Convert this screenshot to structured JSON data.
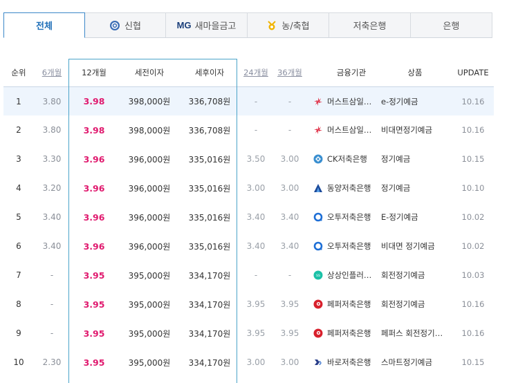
{
  "tabs": [
    {
      "label": "전체",
      "active": true,
      "icon": ""
    },
    {
      "label": "신협",
      "active": false,
      "icon": "shinhyup-logo-icon"
    },
    {
      "label": "새마을금고",
      "active": false,
      "icon": "mg-logo-icon",
      "prefix": "MG"
    },
    {
      "label": "농/축협",
      "active": false,
      "icon": "nonghyup-logo-icon"
    },
    {
      "label": "저축은행",
      "active": false,
      "icon": ""
    },
    {
      "label": "은행",
      "active": false,
      "icon": ""
    }
  ],
  "table": {
    "headers": {
      "rank": "순위",
      "m6": "6개월",
      "m12": "12개월",
      "pre_tax": "세전이자",
      "post_tax": "세후이자",
      "m24": "24개월",
      "m36": "36개월",
      "bank": "금융기관",
      "product": "상품",
      "update": "UPDATE"
    },
    "rows": [
      {
        "rank": "1",
        "m6": "3.80",
        "m12": "3.98",
        "pre": "398,000원",
        "post": "336,708원",
        "m24": "-",
        "m36": "-",
        "bank": "머스트삼일…",
        "product": "e-정기예금",
        "update": "10.16",
        "logo": "must-samil-logo-icon",
        "logo_color": "#e0344a"
      },
      {
        "rank": "2",
        "m6": "3.80",
        "m12": "3.98",
        "pre": "398,000원",
        "post": "336,708원",
        "m24": "-",
        "m36": "-",
        "bank": "머스트삼일…",
        "product": "비대면정기예금",
        "update": "10.16",
        "logo": "must-samil-logo-icon",
        "logo_color": "#e0344a"
      },
      {
        "rank": "3",
        "m6": "3.30",
        "m12": "3.96",
        "pre": "396,000원",
        "post": "335,016원",
        "m24": "3.50",
        "m36": "3.00",
        "bank": "CK저축은행",
        "product": "정기예금",
        "update": "10.15",
        "logo": "ck-logo-icon",
        "logo_color": "#3a8fd0"
      },
      {
        "rank": "4",
        "m6": "3.20",
        "m12": "3.96",
        "pre": "396,000원",
        "post": "335,016원",
        "m24": "3.00",
        "m36": "3.00",
        "bank": "동양저축은행",
        "product": "정기예금",
        "update": "10.10",
        "logo": "dongyang-logo-icon",
        "logo_color": "#1b4a9a"
      },
      {
        "rank": "5",
        "m6": "3.40",
        "m12": "3.96",
        "pre": "396,000원",
        "post": "335,016원",
        "m24": "3.40",
        "m36": "3.40",
        "bank": "오투저축은행",
        "product": "E-정기예금",
        "update": "10.02",
        "logo": "o2-logo-icon",
        "logo_color": "#1e6fd6"
      },
      {
        "rank": "6",
        "m6": "3.40",
        "m12": "3.96",
        "pre": "396,000원",
        "post": "335,016원",
        "m24": "3.40",
        "m36": "3.40",
        "bank": "오투저축은행",
        "product": "비대면 정기예금",
        "update": "10.02",
        "logo": "o2-logo-icon",
        "logo_color": "#1e6fd6"
      },
      {
        "rank": "7",
        "m6": "-",
        "m12": "3.95",
        "pre": "395,000원",
        "post": "334,170원",
        "m24": "-",
        "m36": "-",
        "bank": "상상인플러…",
        "product": "회전정기예금",
        "update": "10.03",
        "logo": "sangsangin-logo-icon",
        "logo_color": "#1bc1a7"
      },
      {
        "rank": "8",
        "m6": "-",
        "m12": "3.95",
        "pre": "395,000원",
        "post": "334,170원",
        "m24": "3.95",
        "m36": "3.95",
        "bank": "페퍼저축은행",
        "product": "회전정기예금",
        "update": "10.16",
        "logo": "pepper-logo-icon",
        "logo_color": "#d8202c"
      },
      {
        "rank": "9",
        "m6": "-",
        "m12": "3.95",
        "pre": "395,000원",
        "post": "334,170원",
        "m24": "3.95",
        "m36": "3.95",
        "bank": "페퍼저축은행",
        "product": "페퍼스 회전정기…",
        "update": "10.16",
        "logo": "pepper-logo-icon",
        "logo_color": "#d8202c"
      },
      {
        "rank": "10",
        "m6": "2.30",
        "m12": "3.95",
        "pre": "395,000원",
        "post": "334,170원",
        "m24": "3.00",
        "m36": "3.00",
        "bank": "바로저축은행",
        "product": "스마트정기예금",
        "update": "10.15",
        "logo": "baro-logo-icon",
        "logo_color": "#2a3f8a"
      }
    ]
  }
}
